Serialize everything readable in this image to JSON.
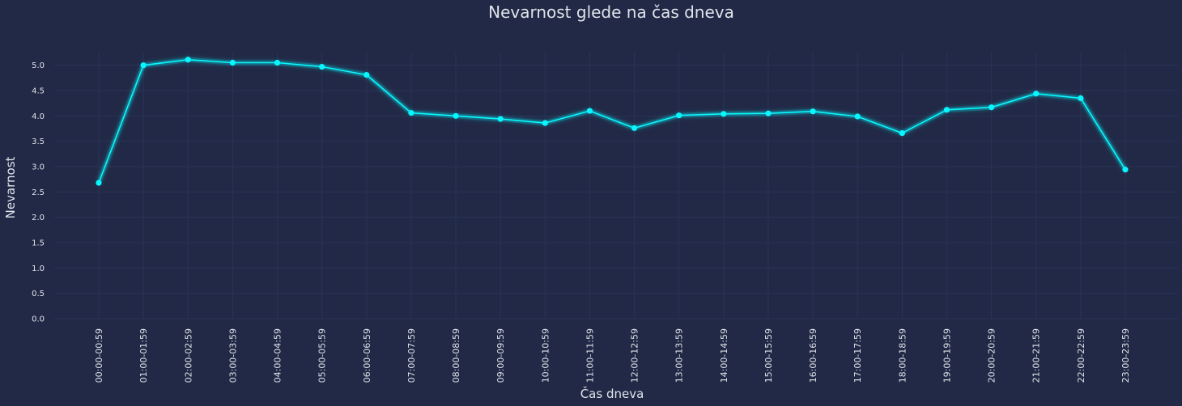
{
  "chart_data": {
    "type": "line",
    "title": "Nevarnost glede na čas dneva",
    "xlabel": "Čas dneva",
    "ylabel": "Nevarnost",
    "ylim": [
      0,
      5.25
    ],
    "yticks": [
      "0.0",
      "0.5",
      "1.0",
      "1.5",
      "2.0",
      "2.5",
      "3.0",
      "3.5",
      "4.0",
      "4.5",
      "5.0"
    ],
    "grid": true,
    "categories": [
      "00:00-00:59",
      "01:00-01:59",
      "02:00-02:59",
      "03:00-03:59",
      "04:00-04:59",
      "05:00-05:59",
      "06:00-06:59",
      "07:00-07:59",
      "08:00-08:59",
      "09:00-09:59",
      "10:00-10:59",
      "11:00-11:59",
      "12:00-12:59",
      "13:00-13:59",
      "14:00-14:59",
      "15:00-15:59",
      "16:00-16:59",
      "17:00-17:59",
      "18:00-18:59",
      "19:00-19:59",
      "20:00-20:59",
      "21:00-21:59",
      "22:00-22:59",
      "23:00-23:59"
    ],
    "series": [
      {
        "color": "#08f7fe",
        "values": [
          2.68,
          5.0,
          5.11,
          5.05,
          5.05,
          4.97,
          4.81,
          4.06,
          4.0,
          3.94,
          3.86,
          4.1,
          3.76,
          4.01,
          4.04,
          4.05,
          4.09,
          3.99,
          3.66,
          4.12,
          4.17,
          4.44,
          4.35,
          2.94
        ]
      }
    ]
  }
}
